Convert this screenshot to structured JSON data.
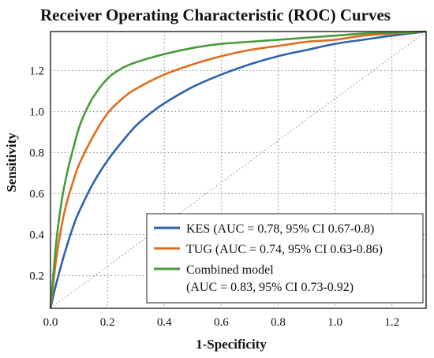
{
  "chart_data": {
    "type": "line",
    "title": "Receiver Operating Characteristic (ROC) Curves",
    "xlabel": "1-Specificity",
    "ylabel": "Sensitivity",
    "xlim": [
      0,
      1.32
    ],
    "ylim": [
      0.04,
      1.39
    ],
    "xticks": [
      0.0,
      0.2,
      0.4,
      0.6,
      0.8,
      1.0,
      1.2
    ],
    "yticks": [
      0.2,
      0.4,
      0.6,
      0.8,
      1.0,
      1.2
    ],
    "xtick_labels": [
      "0.0",
      "0.2",
      "0.4",
      "0.6",
      "0.8",
      "1.0",
      "1.2"
    ],
    "ytick_labels": [
      "0.2",
      "0.4",
      "0.6",
      "0.8",
      "1.0",
      "1.2"
    ],
    "grid": true,
    "legend_position": "bottom-right",
    "reference_line": {
      "x": [
        0.0,
        1.32
      ],
      "y": [
        0.04,
        1.39
      ],
      "style": "dotted"
    },
    "series": [
      {
        "name": "KES (AUC = 0.78, 95% CI 0.67-0.8)",
        "color": "#2e62ad",
        "x": [
          0.0,
          0.02,
          0.05,
          0.08,
          0.1,
          0.15,
          0.2,
          0.25,
          0.3,
          0.35,
          0.4,
          0.5,
          0.6,
          0.7,
          0.8,
          0.9,
          1.0,
          1.1,
          1.2,
          1.32
        ],
        "y": [
          0.04,
          0.16,
          0.31,
          0.44,
          0.51,
          0.65,
          0.76,
          0.85,
          0.93,
          0.99,
          1.04,
          1.12,
          1.18,
          1.23,
          1.27,
          1.3,
          1.33,
          1.35,
          1.37,
          1.39
        ]
      },
      {
        "name": "TUG (AUC = 0.74, 95% CI 0.63-0.86)",
        "color": "#e26b1d",
        "x": [
          0.0,
          0.02,
          0.04,
          0.06,
          0.08,
          0.1,
          0.15,
          0.2,
          0.25,
          0.3,
          0.4,
          0.5,
          0.6,
          0.7,
          0.8,
          0.9,
          1.0,
          1.1,
          1.2,
          1.32
        ],
        "y": [
          0.04,
          0.28,
          0.45,
          0.57,
          0.66,
          0.74,
          0.88,
          0.99,
          1.06,
          1.11,
          1.18,
          1.23,
          1.27,
          1.3,
          1.32,
          1.34,
          1.35,
          1.37,
          1.38,
          1.39
        ]
      },
      {
        "name": "Combined model",
        "name_line2": "(AUC = 0.83, 95% CI 0.73-0.92)",
        "color": "#4a9a3c",
        "x": [
          0.0,
          0.02,
          0.04,
          0.06,
          0.08,
          0.1,
          0.12,
          0.15,
          0.2,
          0.25,
          0.3,
          0.4,
          0.5,
          0.6,
          0.7,
          0.8,
          0.9,
          1.0,
          1.1,
          1.2,
          1.32
        ],
        "y": [
          0.04,
          0.36,
          0.57,
          0.71,
          0.82,
          0.92,
          0.99,
          1.07,
          1.16,
          1.21,
          1.24,
          1.28,
          1.31,
          1.33,
          1.34,
          1.35,
          1.36,
          1.37,
          1.38,
          1.385,
          1.39
        ]
      }
    ]
  }
}
